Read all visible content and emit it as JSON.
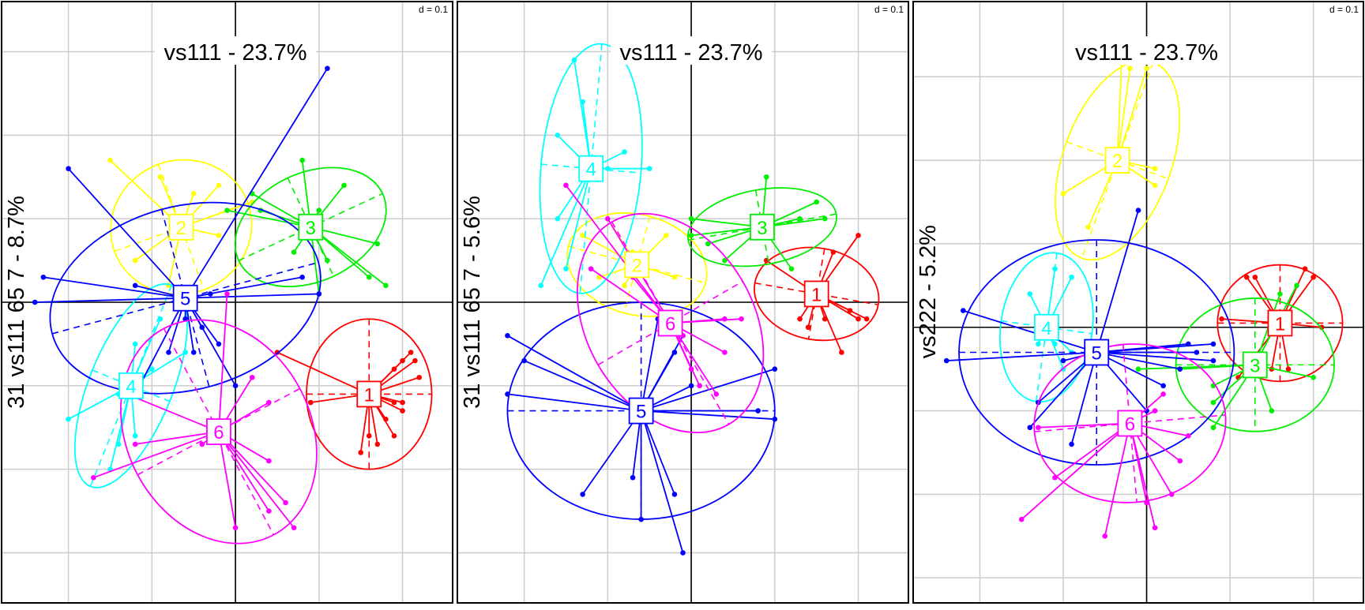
{
  "figure": {
    "panels": [
      {
        "title": "vs111 - 23.7%",
        "ylabel": "31 vs111 65 7 - 8.7%",
        "scale_label": "d = 0.1"
      },
      {
        "title": "vs111 - 23.7%",
        "ylabel": "31 vs111 65 7 - 5.6%",
        "scale_label": "d = 0.1"
      },
      {
        "title": "vs111 - 23.7%",
        "ylabel": "vs222 - 5.2%",
        "scale_label": "d = 0.1"
      }
    ]
  },
  "chart_data": [
    {
      "type": "scatter",
      "title": "vs111 - 23.7%",
      "xlabel": "",
      "ylabel": "31 vs111 65 7 - 8.7%",
      "scale_label": "d = 0.1",
      "xlim": [
        -0.28,
        0.26
      ],
      "ylim": [
        -0.36,
        0.36
      ],
      "grid": true,
      "groups": [
        {
          "label": "1",
          "color": "#ff0000",
          "center": [
            0.16,
            -0.11
          ],
          "ellipse": {
            "rx": 0.075,
            "ry": 0.09,
            "rot": 0
          },
          "points": [
            [
              0.21,
              -0.06
            ],
            [
              0.215,
              -0.07
            ],
            [
              0.2,
              -0.07
            ],
            [
              0.19,
              -0.08
            ],
            [
              0.22,
              -0.09
            ],
            [
              0.2,
              -0.13
            ],
            [
              0.19,
              -0.16
            ],
            [
              0.15,
              -0.18
            ],
            [
              0.16,
              -0.16
            ],
            [
              0.18,
              -0.14
            ],
            [
              0.09,
              -0.12
            ],
            [
              0.05,
              -0.06
            ],
            [
              0.19,
              -0.12
            ],
            [
              0.17,
              -0.17
            ],
            [
              0.2,
              -0.12
            ]
          ]
        },
        {
          "label": "2",
          "color": "#ffff00",
          "center": [
            -0.065,
            0.09
          ],
          "ellipse": {
            "rx": 0.085,
            "ry": 0.08,
            "rot": -20
          },
          "points": [
            [
              -0.15,
              0.17
            ],
            [
              -0.02,
              0.14
            ],
            [
              -0.05,
              0.13
            ],
            [
              -0.02,
              0.08
            ],
            [
              -0.08,
              0.02
            ],
            [
              -0.12,
              0.05
            ],
            [
              0.02,
              0.12
            ],
            [
              -0.09,
              0.15
            ]
          ]
        },
        {
          "label": "3",
          "color": "#00ee00",
          "center": [
            0.09,
            0.09
          ],
          "ellipse": {
            "rx": 0.095,
            "ry": 0.065,
            "rot": -25
          },
          "points": [
            [
              0.08,
              0.17
            ],
            [
              0.02,
              0.13
            ],
            [
              0.13,
              0.14
            ],
            [
              0.17,
              0.07
            ],
            [
              0.18,
              0.02
            ],
            [
              0.1,
              0.01
            ],
            [
              0.16,
              0.03
            ],
            [
              0.11,
              0.05
            ],
            [
              0.03,
              0.11
            ],
            [
              0.07,
              0.06
            ],
            [
              -0.01,
              0.11
            ],
            [
              0.1,
              0.11
            ]
          ]
        },
        {
          "label": "4",
          "color": "#00ffff",
          "center": [
            -0.125,
            -0.1
          ],
          "ellipse": {
            "rx": 0.05,
            "ry": 0.13,
            "rot": 22
          },
          "points": [
            [
              -0.2,
              -0.14
            ],
            [
              -0.15,
              -0.2
            ],
            [
              -0.14,
              -0.17
            ],
            [
              -0.12,
              -0.16
            ],
            [
              -0.12,
              -0.05
            ],
            [
              -0.09,
              -0.02
            ],
            [
              -0.1,
              -0.08
            ],
            [
              -0.06,
              -0.06
            ],
            [
              -0.14,
              -0.11
            ]
          ]
        },
        {
          "label": "5",
          "color": "#0000ff",
          "center": [
            -0.06,
            0.005
          ],
          "ellipse": {
            "rx": 0.165,
            "ry": 0.11,
            "rot": -15
          },
          "points": [
            [
              0.11,
              0.28
            ],
            [
              0.1,
              0.01
            ],
            [
              0.08,
              0.03
            ],
            [
              -0.2,
              0.16
            ],
            [
              -0.23,
              0.03
            ],
            [
              -0.24,
              0.0
            ],
            [
              -0.12,
              0.02
            ],
            [
              -0.04,
              -0.03
            ],
            [
              -0.05,
              -0.06
            ],
            [
              0.0,
              -0.1
            ],
            [
              -0.06,
              -0.02
            ],
            [
              -0.08,
              -0.06
            ],
            [
              -0.12,
              -0.11
            ],
            [
              -0.02,
              -0.05
            ],
            [
              -0.03,
              0.01
            ]
          ]
        },
        {
          "label": "6",
          "color": "#ff00ff",
          "center": [
            -0.02,
            -0.155
          ],
          "ellipse": {
            "rx": 0.11,
            "ry": 0.14,
            "rot": -28
          },
          "points": [
            [
              -0.13,
              -0.11
            ],
            [
              0.02,
              -0.09
            ],
            [
              0.04,
              -0.12
            ],
            [
              0.06,
              -0.24
            ],
            [
              0.07,
              -0.27
            ],
            [
              -0.0,
              -0.27
            ],
            [
              -0.17,
              -0.21
            ],
            [
              -0.12,
              -0.17
            ],
            [
              0.04,
              -0.19
            ],
            [
              -0.04,
              -0.17
            ],
            [
              0.04,
              -0.25
            ],
            [
              -0.01,
              0.01
            ]
          ]
        }
      ]
    },
    {
      "type": "scatter",
      "title": "vs111 - 23.7%",
      "xlabel": "",
      "ylabel": "31 vs111 65 7 - 5.6%",
      "scale_label": "d = 0.1",
      "xlim": [
        -0.28,
        0.26
      ],
      "ylim": [
        -0.36,
        0.36
      ],
      "grid": true,
      "groups": [
        {
          "label": "1",
          "color": "#ff0000",
          "center": [
            0.15,
            0.01
          ],
          "ellipse": {
            "rx": 0.075,
            "ry": 0.055,
            "rot": 10
          },
          "points": [
            [
              0.2,
              0.08
            ],
            [
              0.17,
              0.06
            ],
            [
              0.21,
              -0.02
            ],
            [
              0.2,
              -0.02
            ],
            [
              0.18,
              -0.06
            ],
            [
              0.13,
              -0.02
            ],
            [
              0.14,
              -0.03
            ],
            [
              0.09,
              0.05
            ],
            [
              0.16,
              -0.02
            ],
            [
              0.19,
              -0.01
            ]
          ]
        },
        {
          "label": "2",
          "color": "#ffff00",
          "center": [
            -0.065,
            0.045
          ],
          "ellipse": {
            "rx": 0.085,
            "ry": 0.06,
            "rot": 15
          },
          "points": [
            [
              -0.1,
              0.1
            ],
            [
              -0.13,
              0.08
            ],
            [
              -0.03,
              0.08
            ],
            [
              -0.08,
              0.02
            ],
            [
              -0.02,
              0.03
            ],
            [
              -0.11,
              0.03
            ],
            [
              -0.07,
              0.06
            ]
          ]
        },
        {
          "label": "3",
          "color": "#00ee00",
          "center": [
            0.085,
            0.09
          ],
          "ellipse": {
            "rx": 0.09,
            "ry": 0.045,
            "rot": -10
          },
          "points": [
            [
              0.0,
              0.1
            ],
            [
              0.13,
              0.1
            ],
            [
              0.16,
              0.1
            ],
            [
              0.09,
              0.15
            ],
            [
              0.12,
              0.04
            ],
            [
              0.02,
              0.07
            ],
            [
              0.04,
              0.05
            ],
            [
              0.15,
              0.12
            ],
            [
              0.0,
              0.08
            ]
          ]
        },
        {
          "label": "4",
          "color": "#00ffff",
          "center": [
            -0.12,
            0.16
          ],
          "ellipse": {
            "rx": 0.06,
            "ry": 0.15,
            "rot": 5
          },
          "points": [
            [
              -0.14,
              0.29
            ],
            [
              -0.16,
              0.2
            ],
            [
              -0.18,
              0.02
            ],
            [
              -0.16,
              0.1
            ],
            [
              -0.13,
              0.24
            ],
            [
              -0.05,
              0.16
            ],
            [
              -0.1,
              0.16
            ],
            [
              -0.08,
              0.18
            ],
            [
              -0.15,
              0.04
            ]
          ]
        },
        {
          "label": "5",
          "color": "#0000ff",
          "center": [
            -0.06,
            -0.13
          ],
          "ellipse": {
            "rx": 0.16,
            "ry": 0.13,
            "rot": 0
          },
          "points": [
            [
              -0.22,
              -0.04
            ],
            [
              -0.2,
              -0.07
            ],
            [
              -0.22,
              -0.11
            ],
            [
              -0.07,
              -0.21
            ],
            [
              -0.13,
              -0.23
            ],
            [
              -0.06,
              -0.26
            ],
            [
              -0.01,
              -0.3
            ],
            [
              -0.02,
              -0.23
            ],
            [
              0.1,
              -0.08
            ],
            [
              0.1,
              -0.14
            ],
            [
              0.0,
              -0.1
            ],
            [
              -0.02,
              -0.06
            ],
            [
              -0.01,
              -0.04
            ],
            [
              -0.04,
              -0.02
            ],
            [
              0.08,
              -0.13
            ]
          ]
        },
        {
          "label": "6",
          "color": "#ff00ff",
          "center": [
            -0.025,
            -0.025
          ],
          "ellipse": {
            "rx": 0.1,
            "ry": 0.14,
            "rot": -30
          },
          "points": [
            [
              -0.15,
              0.14
            ],
            [
              -0.1,
              0.1
            ],
            [
              -0.12,
              0.04
            ],
            [
              0.06,
              -0.02
            ],
            [
              0.04,
              -0.06
            ],
            [
              0.01,
              -0.1
            ],
            [
              0.0,
              -0.08
            ],
            [
              -0.01,
              -0.04
            ],
            [
              0.03,
              -0.11
            ],
            [
              -0.07,
              0.03
            ],
            [
              0.04,
              -0.02
            ]
          ]
        }
      ]
    },
    {
      "type": "scatter",
      "title": "vs111 - 23.7%",
      "xlabel": "",
      "ylabel": "vs222 - 5.2%",
      "scale_label": "d = 0.1",
      "xlim": [
        -0.28,
        0.26
      ],
      "ylim": [
        -0.33,
        0.39
      ],
      "grid": true,
      "groups": [
        {
          "label": "1",
          "color": "#ff0000",
          "center": [
            0.16,
            0.005
          ],
          "ellipse": {
            "rx": 0.075,
            "ry": 0.07,
            "rot": 0
          },
          "points": [
            [
              0.12,
              0.06
            ],
            [
              0.13,
              0.06
            ],
            [
              0.19,
              0.07
            ],
            [
              0.2,
              0.06
            ],
            [
              0.21,
              0.0
            ],
            [
              0.15,
              -0.05
            ],
            [
              0.11,
              -0.06
            ],
            [
              0.09,
              0.01
            ],
            [
              0.17,
              -0.05
            ]
          ]
        },
        {
          "label": "2",
          "color": "#ffff00",
          "center": [
            -0.035,
            0.2
          ],
          "ellipse": {
            "rx": 0.065,
            "ry": 0.125,
            "rot": 20
          },
          "points": [
            [
              -0.02,
              0.31
            ],
            [
              0.0,
              0.31
            ],
            [
              -0.03,
              0.32
            ],
            [
              -0.07,
              0.12
            ],
            [
              -0.1,
              0.16
            ],
            [
              0.01,
              0.17
            ],
            [
              0.01,
              0.19
            ]
          ]
        },
        {
          "label": "3",
          "color": "#00ee00",
          "center": [
            0.13,
            -0.045
          ],
          "ellipse": {
            "rx": 0.095,
            "ry": 0.08,
            "rot": 0
          },
          "points": [
            [
              0.08,
              -0.12
            ],
            [
              0.15,
              -0.1
            ],
            [
              0.08,
              -0.07
            ],
            [
              0.04,
              -0.05
            ],
            [
              0.16,
              0.04
            ],
            [
              0.18,
              0.05
            ],
            [
              0.2,
              -0.06
            ],
            [
              0.08,
              -0.09
            ],
            [
              -0.01,
              -0.05
            ]
          ]
        },
        {
          "label": "4",
          "color": "#00ffff",
          "center": [
            -0.12,
            0.0
          ],
          "ellipse": {
            "rx": 0.055,
            "ry": 0.09,
            "rot": 8
          },
          "points": [
            [
              -0.14,
              0.04
            ],
            [
              -0.11,
              0.07
            ],
            [
              -0.09,
              0.06
            ],
            [
              -0.13,
              -0.02
            ],
            [
              -0.09,
              -0.03
            ],
            [
              -0.1,
              -0.05
            ],
            [
              -0.11,
              -0.02
            ]
          ]
        },
        {
          "label": "5",
          "color": "#0000ff",
          "center": [
            -0.06,
            -0.03
          ],
          "ellipse": {
            "rx": 0.165,
            "ry": 0.135,
            "rot": 0
          },
          "points": [
            [
              -0.01,
              0.14
            ],
            [
              -0.22,
              0.02
            ],
            [
              -0.24,
              -0.04
            ],
            [
              0.08,
              -0.04
            ],
            [
              0.06,
              -0.03
            ],
            [
              0.05,
              -0.02
            ],
            [
              0.04,
              -0.05
            ],
            [
              0.02,
              -0.07
            ],
            [
              0.0,
              -0.1
            ],
            [
              -0.14,
              -0.12
            ],
            [
              -0.09,
              -0.14
            ],
            [
              -0.13,
              -0.09
            ],
            [
              -0.1,
              -0.04
            ],
            [
              0.08,
              -0.02
            ]
          ]
        },
        {
          "label": "6",
          "color": "#ff00ff",
          "center": [
            -0.02,
            -0.115
          ],
          "ellipse": {
            "rx": 0.115,
            "ry": 0.095,
            "rot": -5
          },
          "points": [
            [
              -0.15,
              -0.23
            ],
            [
              -0.05,
              -0.25
            ],
            [
              0.0,
              -0.21
            ],
            [
              0.04,
              -0.16
            ],
            [
              0.05,
              -0.13
            ],
            [
              0.01,
              -0.24
            ],
            [
              -0.11,
              -0.18
            ],
            [
              0.03,
              -0.2
            ],
            [
              -0.13,
              -0.12
            ],
            [
              0.01,
              -0.1
            ],
            [
              0.02,
              -0.08
            ]
          ]
        }
      ]
    }
  ]
}
